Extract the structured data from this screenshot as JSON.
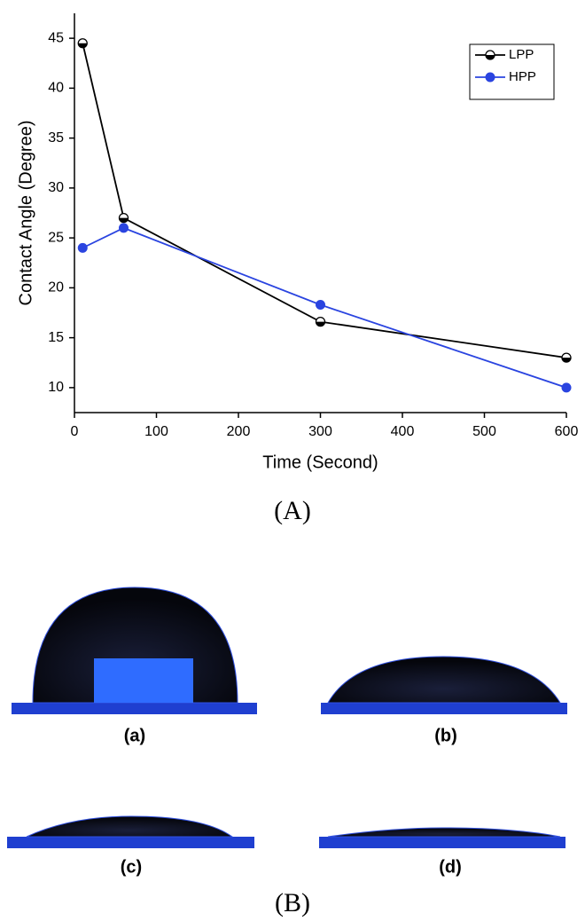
{
  "chart_data": {
    "type": "line",
    "x_label": "Time (Second)",
    "y_label": "Contact Angle (Degree)",
    "x": [
      10,
      60,
      300,
      600
    ],
    "series": [
      {
        "name": "LPP",
        "color": "#000000",
        "marker": "half-circle",
        "values": [
          44.5,
          27,
          16.6,
          13
        ]
      },
      {
        "name": "HPP",
        "color": "#2a44e0",
        "marker": "circle",
        "values": [
          24,
          26,
          18.3,
          10
        ]
      }
    ],
    "xlim": [
      0,
      600
    ],
    "ylim": [
      7.5,
      47.5
    ],
    "xticks": [
      0,
      100,
      200,
      300,
      400,
      500,
      600
    ],
    "yticks": [
      10,
      15,
      20,
      25,
      30,
      35,
      40,
      45
    ],
    "legend": "top-right",
    "grid": false
  },
  "panel_a_label": "(A)",
  "panel_b": {
    "label": "(B)",
    "images": [
      {
        "label": "(a)"
      },
      {
        "label": "(b)"
      },
      {
        "label": "(c)"
      },
      {
        "label": "(d)"
      }
    ]
  }
}
